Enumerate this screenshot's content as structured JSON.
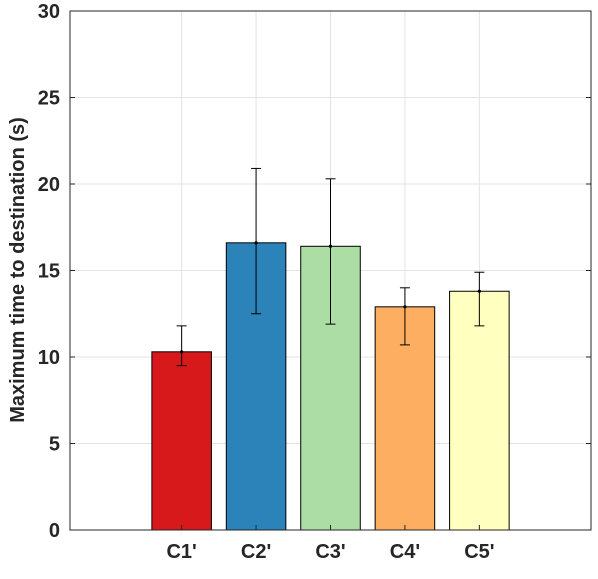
{
  "chart_data": {
    "type": "bar",
    "title": "",
    "xlabel": "",
    "ylabel": "Maximum time to destination (s)",
    "categories": [
      "C1'",
      "C2'",
      "C3'",
      "C4'",
      "C5'"
    ],
    "values": [
      10.3,
      16.6,
      16.4,
      12.9,
      13.8
    ],
    "error_low": [
      9.5,
      12.5,
      11.9,
      10.7,
      11.8
    ],
    "error_high": [
      11.8,
      20.9,
      20.3,
      14.0,
      14.9
    ],
    "colors": [
      "#d7191c",
      "#2b83ba",
      "#abdda4",
      "#fdae61",
      "#ffffbf"
    ],
    "ylim": [
      0,
      30
    ],
    "yticks": [
      "0",
      "5",
      "10",
      "15",
      "20",
      "25",
      "30"
    ],
    "grid": true,
    "legend": "none"
  }
}
